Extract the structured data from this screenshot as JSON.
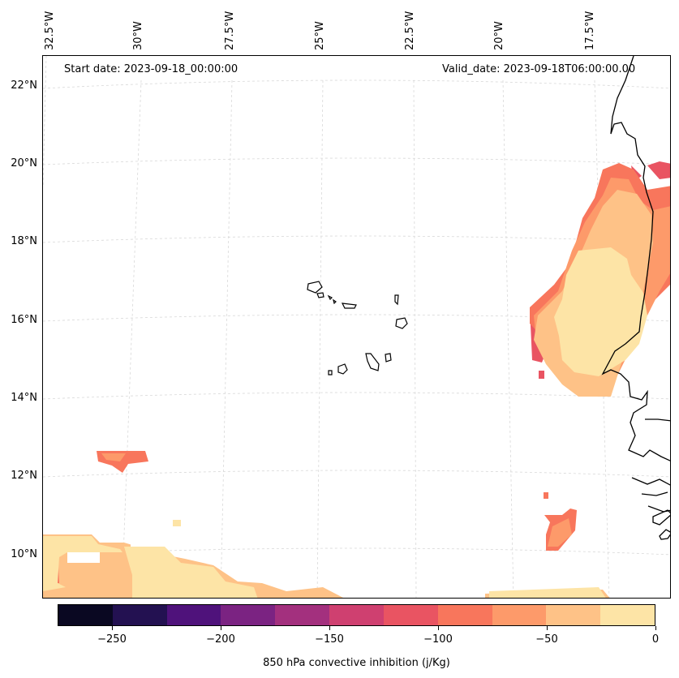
{
  "header": {
    "start_date": "Start date: 2023-09-18_00:00:00",
    "valid_date": "Valid_date: 2023-09-18T06:00:00.00"
  },
  "longitude_labels": [
    "32.5°W",
    "30°W",
    "27.5°W",
    "25°W",
    "22.5°W",
    "20°W",
    "17.5°W"
  ],
  "latitude_labels": [
    "22°N",
    "20°N",
    "18°N",
    "16°N",
    "14°N",
    "12°N",
    "10°N"
  ],
  "colorbar": {
    "title": "850 hPa convective inhibition (j/Kg)",
    "range": [
      -275,
      0
    ],
    "tick_values": [
      -250,
      -200,
      -150,
      -100,
      -50,
      0
    ],
    "tick_labels": [
      "−250",
      "−200",
      "−150",
      "−100",
      "−50",
      "0"
    ],
    "colors": [
      "#0a0822",
      "#231151",
      "#4f127b",
      "#7b2382",
      "#a3307e",
      "#cf4070",
      "#e95462",
      "#f8765c",
      "#fd9a6a",
      "#fec287",
      "#fde4a6"
    ]
  },
  "field_colors": {
    "level_-75": "#e95462",
    "level_-50": "#f8765c",
    "level_-25": "#fd9a6a",
    "level_-10": "#fec287",
    "level_0": "#fde4a6"
  }
}
